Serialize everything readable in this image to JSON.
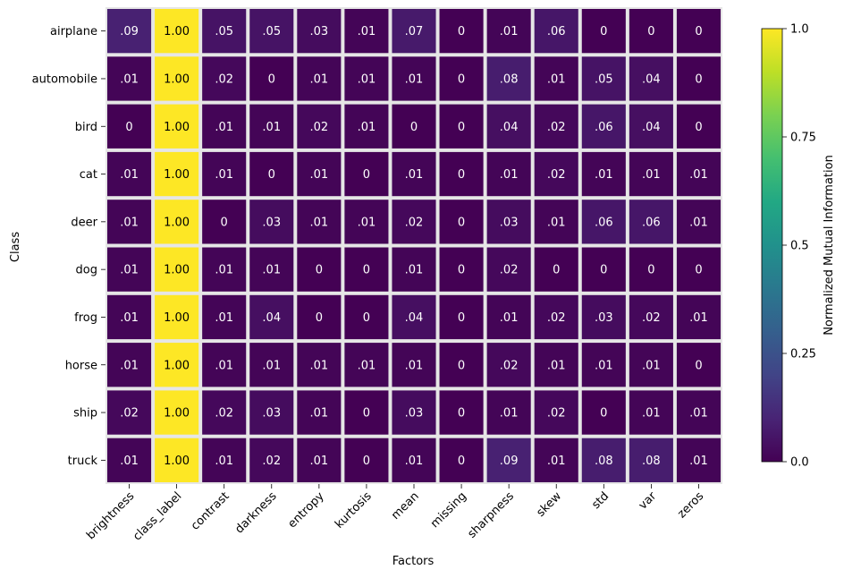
{
  "chart_data": {
    "type": "heatmap",
    "xlabel": "Factors",
    "ylabel": "Class",
    "x_categories": [
      "brightness",
      "class_label",
      "contrast",
      "darkness",
      "entropy",
      "kurtosis",
      "mean",
      "missing",
      "sharpness",
      "skew",
      "std",
      "var",
      "zeros"
    ],
    "y_categories": [
      "airplane",
      "automobile",
      "bird",
      "cat",
      "deer",
      "dog",
      "frog",
      "horse",
      "ship",
      "truck"
    ],
    "values": [
      [
        0.09,
        1.0,
        0.05,
        0.05,
        0.03,
        0.01,
        0.07,
        0,
        0.01,
        0.06,
        0,
        0,
        0
      ],
      [
        0.01,
        1.0,
        0.02,
        0,
        0.01,
        0.01,
        0.01,
        0,
        0.08,
        0.01,
        0.05,
        0.04,
        0
      ],
      [
        0,
        1.0,
        0.01,
        0.01,
        0.02,
        0.01,
        0,
        0,
        0.04,
        0.02,
        0.06,
        0.04,
        0
      ],
      [
        0.01,
        1.0,
        0.01,
        0,
        0.01,
        0,
        0.01,
        0,
        0.01,
        0.02,
        0.01,
        0.01,
        0.01
      ],
      [
        0.01,
        1.0,
        0,
        0.03,
        0.01,
        0.01,
        0.02,
        0,
        0.03,
        0.01,
        0.06,
        0.06,
        0.01
      ],
      [
        0.01,
        1.0,
        0.01,
        0.01,
        0,
        0,
        0.01,
        0,
        0.02,
        0,
        0,
        0,
        0
      ],
      [
        0.01,
        1.0,
        0.01,
        0.04,
        0,
        0,
        0.04,
        0,
        0.01,
        0.02,
        0.03,
        0.02,
        0.01
      ],
      [
        0.01,
        1.0,
        0.01,
        0.01,
        0.01,
        0.01,
        0.01,
        0,
        0.02,
        0.01,
        0.01,
        0.01,
        0
      ],
      [
        0.02,
        1.0,
        0.02,
        0.03,
        0.01,
        0,
        0.03,
        0,
        0.01,
        0.02,
        0,
        0.01,
        0.01
      ],
      [
        0.01,
        1.0,
        0.01,
        0.02,
        0.01,
        0,
        0.01,
        0,
        0.09,
        0.01,
        0.08,
        0.08,
        0.01
      ]
    ],
    "colorbar": {
      "label": "Normalized Mutual Information",
      "range": [
        0,
        1
      ],
      "ticks": [
        0.0,
        0.25,
        0.5,
        0.75,
        1.0
      ],
      "tick_labels": [
        "0.0",
        "0.25",
        "0.5",
        "0.75",
        "1.0"
      ],
      "colormap": "viridis"
    },
    "colors": {
      "cell_border": "#e6e6e6",
      "annotation_text_dark_cell": "#ffffff",
      "annotation_text_bright_cell": "#000000"
    }
  }
}
